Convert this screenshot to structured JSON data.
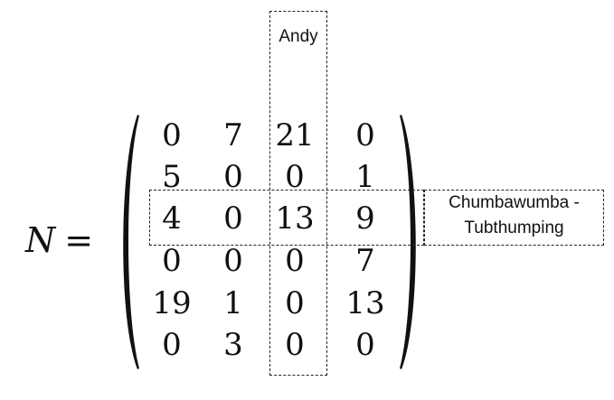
{
  "matrix": {
    "symbol": "N",
    "equals": "=",
    "rows": [
      [
        "0",
        "7",
        "21",
        "0"
      ],
      [
        "5",
        "0",
        "0",
        "1"
      ],
      [
        "4",
        "0",
        "13",
        "9"
      ],
      [
        "0",
        "0",
        "0",
        "7"
      ],
      [
        "19",
        "1",
        "0",
        "13"
      ],
      [
        "0",
        "3",
        "0",
        "0"
      ]
    ]
  },
  "highlight": {
    "column_label": "Andy",
    "column_index": 2,
    "row_label_line1": "Chumbawumba -",
    "row_label_line2": "Tubthumping",
    "row_index": 2
  }
}
